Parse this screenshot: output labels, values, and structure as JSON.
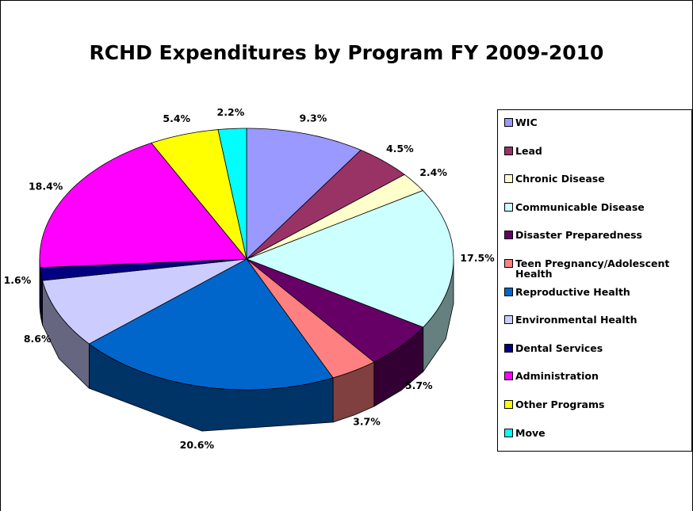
{
  "chart_data": {
    "type": "pie",
    "title": "RCHD Expenditures by Program FY 2009-2010",
    "categories": [
      "WIC",
      "Lead",
      "Chronic Disease",
      "Communicable Disease",
      "Disaster Preparedness",
      "Teen Pregnancy/Adolescent Health",
      "Reproductive Health",
      "Environmental Health",
      "Dental Services",
      "Administration",
      "Other Programs",
      "Move"
    ],
    "values": [
      9.3,
      4.5,
      2.4,
      17.5,
      5.7,
      3.7,
      20.6,
      8.6,
      1.6,
      18.4,
      5.4,
      2.2
    ],
    "value_labels": [
      "9.3%",
      "4.5%",
      "2.4%",
      "17.5%",
      "5.7%",
      "3.7%",
      "20.6%",
      "8.6%",
      "1.6%",
      "18.4%",
      "5.4%",
      "2.2%"
    ],
    "colors": [
      "#9999ff",
      "#993366",
      "#ffffcc",
      "#ccffff",
      "#660066",
      "#ff8080",
      "#0066cc",
      "#ccccff",
      "#000080",
      "#ff00ff",
      "#ffff00",
      "#00ffff"
    ],
    "legend": "right"
  }
}
